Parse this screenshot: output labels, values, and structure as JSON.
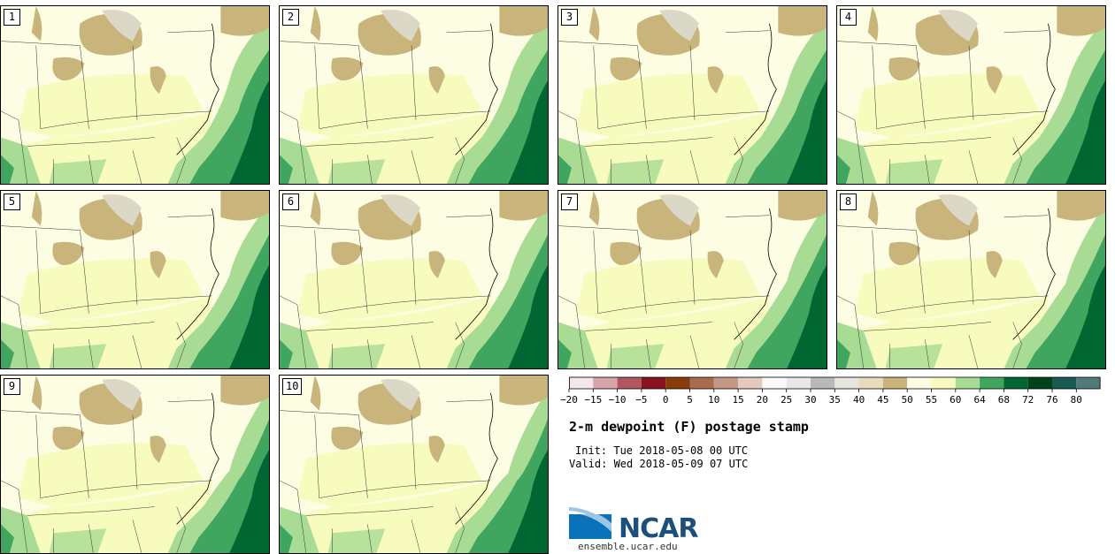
{
  "panels": [
    "1",
    "2",
    "3",
    "4",
    "5",
    "6",
    "7",
    "8",
    "9",
    "10"
  ],
  "colorbar": {
    "ticks": [
      "−20",
      "−15",
      "−10",
      "−5",
      "0",
      "5",
      "10",
      "15",
      "20",
      "25",
      "30",
      "35",
      "40",
      "45",
      "50",
      "55",
      "60",
      "64",
      "68",
      "72",
      "76",
      "80"
    ],
    "colors": [
      "#f5e6ea",
      "#d8a4a9",
      "#b2575f",
      "#891220",
      "#8a3b0c",
      "#a86d4d",
      "#c59886",
      "#e4c9bd",
      "#fbfafa",
      "#e8e8e8",
      "#b9b9b9",
      "#e6e6dc",
      "#e7dbbd",
      "#c9b57b",
      "#fdfde4",
      "#f7fbbd",
      "#a8dc94",
      "#3fa55f",
      "#006733",
      "#00421a",
      "#195a52",
      "#517a7b"
    ]
  },
  "title": "2-m dewpoint (F) postage stamp",
  "init": "Init: Tue 2018-05-08 00 UTC",
  "valid": "Valid: Wed 2018-05-09 07 UTC",
  "logo": {
    "text": "NCAR",
    "site": "ensemble.ucar.edu"
  },
  "map_colors": {
    "tan": "#c9b57b",
    "gray": "#dcd8c8",
    "cream": "#fdfde4",
    "yellow": "#f7fbbd",
    "lightgreen": "#a8dc94",
    "green": "#3fa55f",
    "darkgreen": "#006733"
  }
}
